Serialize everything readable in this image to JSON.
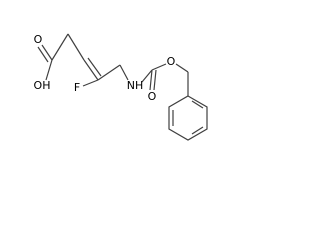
{
  "labels": [
    "O",
    "OH",
    "F",
    "NH",
    "O",
    "O"
  ]
}
